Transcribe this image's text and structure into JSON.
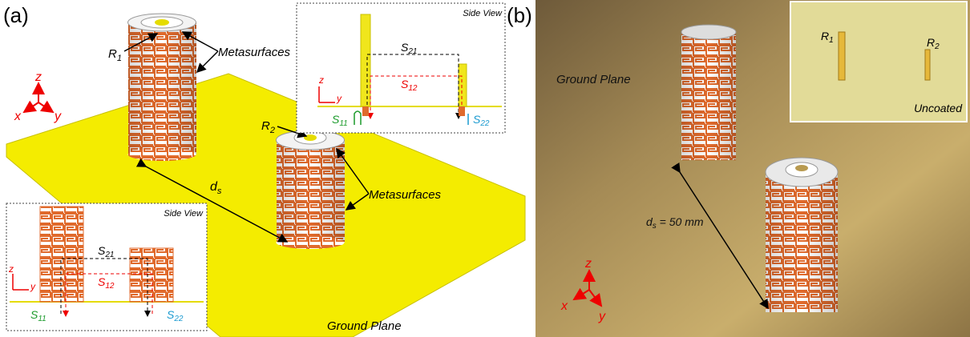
{
  "panel_a": {
    "label": "(a)",
    "r1": {
      "base": "R",
      "sub": "1"
    },
    "r2": {
      "base": "R",
      "sub": "2"
    },
    "metasurfaces_1": "Metasurfaces",
    "metasurfaces_2": "Metasurfaces",
    "axes": {
      "z": "z",
      "x": "x",
      "y": "y"
    },
    "distance": {
      "base": "d",
      "sub": "s"
    },
    "ground_plane": "Ground Plane",
    "side_view_top": {
      "title": "Side View",
      "s21": {
        "base": "S",
        "sub": "21"
      },
      "s12": {
        "base": "S",
        "sub": "12"
      },
      "s11": {
        "base": "S",
        "sub": "11"
      },
      "s22": {
        "base": "S",
        "sub": "22"
      },
      "axes": {
        "z": "z",
        "y": "y"
      }
    },
    "side_view_bottom": {
      "title": "Side View",
      "s21": {
        "base": "S",
        "sub": "21"
      },
      "s12": {
        "base": "S",
        "sub": "12"
      },
      "s11": {
        "base": "S",
        "sub": "11"
      },
      "s22": {
        "base": "S",
        "sub": "22"
      },
      "axes": {
        "z": "z",
        "y": "y"
      }
    }
  },
  "panel_b": {
    "label": "(b)",
    "ground_plane": "Ground Plane",
    "distance": {
      "base": "d",
      "sub": "s",
      "rest": " = 50 mm"
    },
    "axes": {
      "z": "z",
      "x": "x",
      "y": "y"
    },
    "inset": {
      "r1": {
        "base": "R",
        "sub": "1"
      },
      "r2": {
        "base": "R",
        "sub": "2"
      },
      "caption": "Uncoated"
    }
  }
}
